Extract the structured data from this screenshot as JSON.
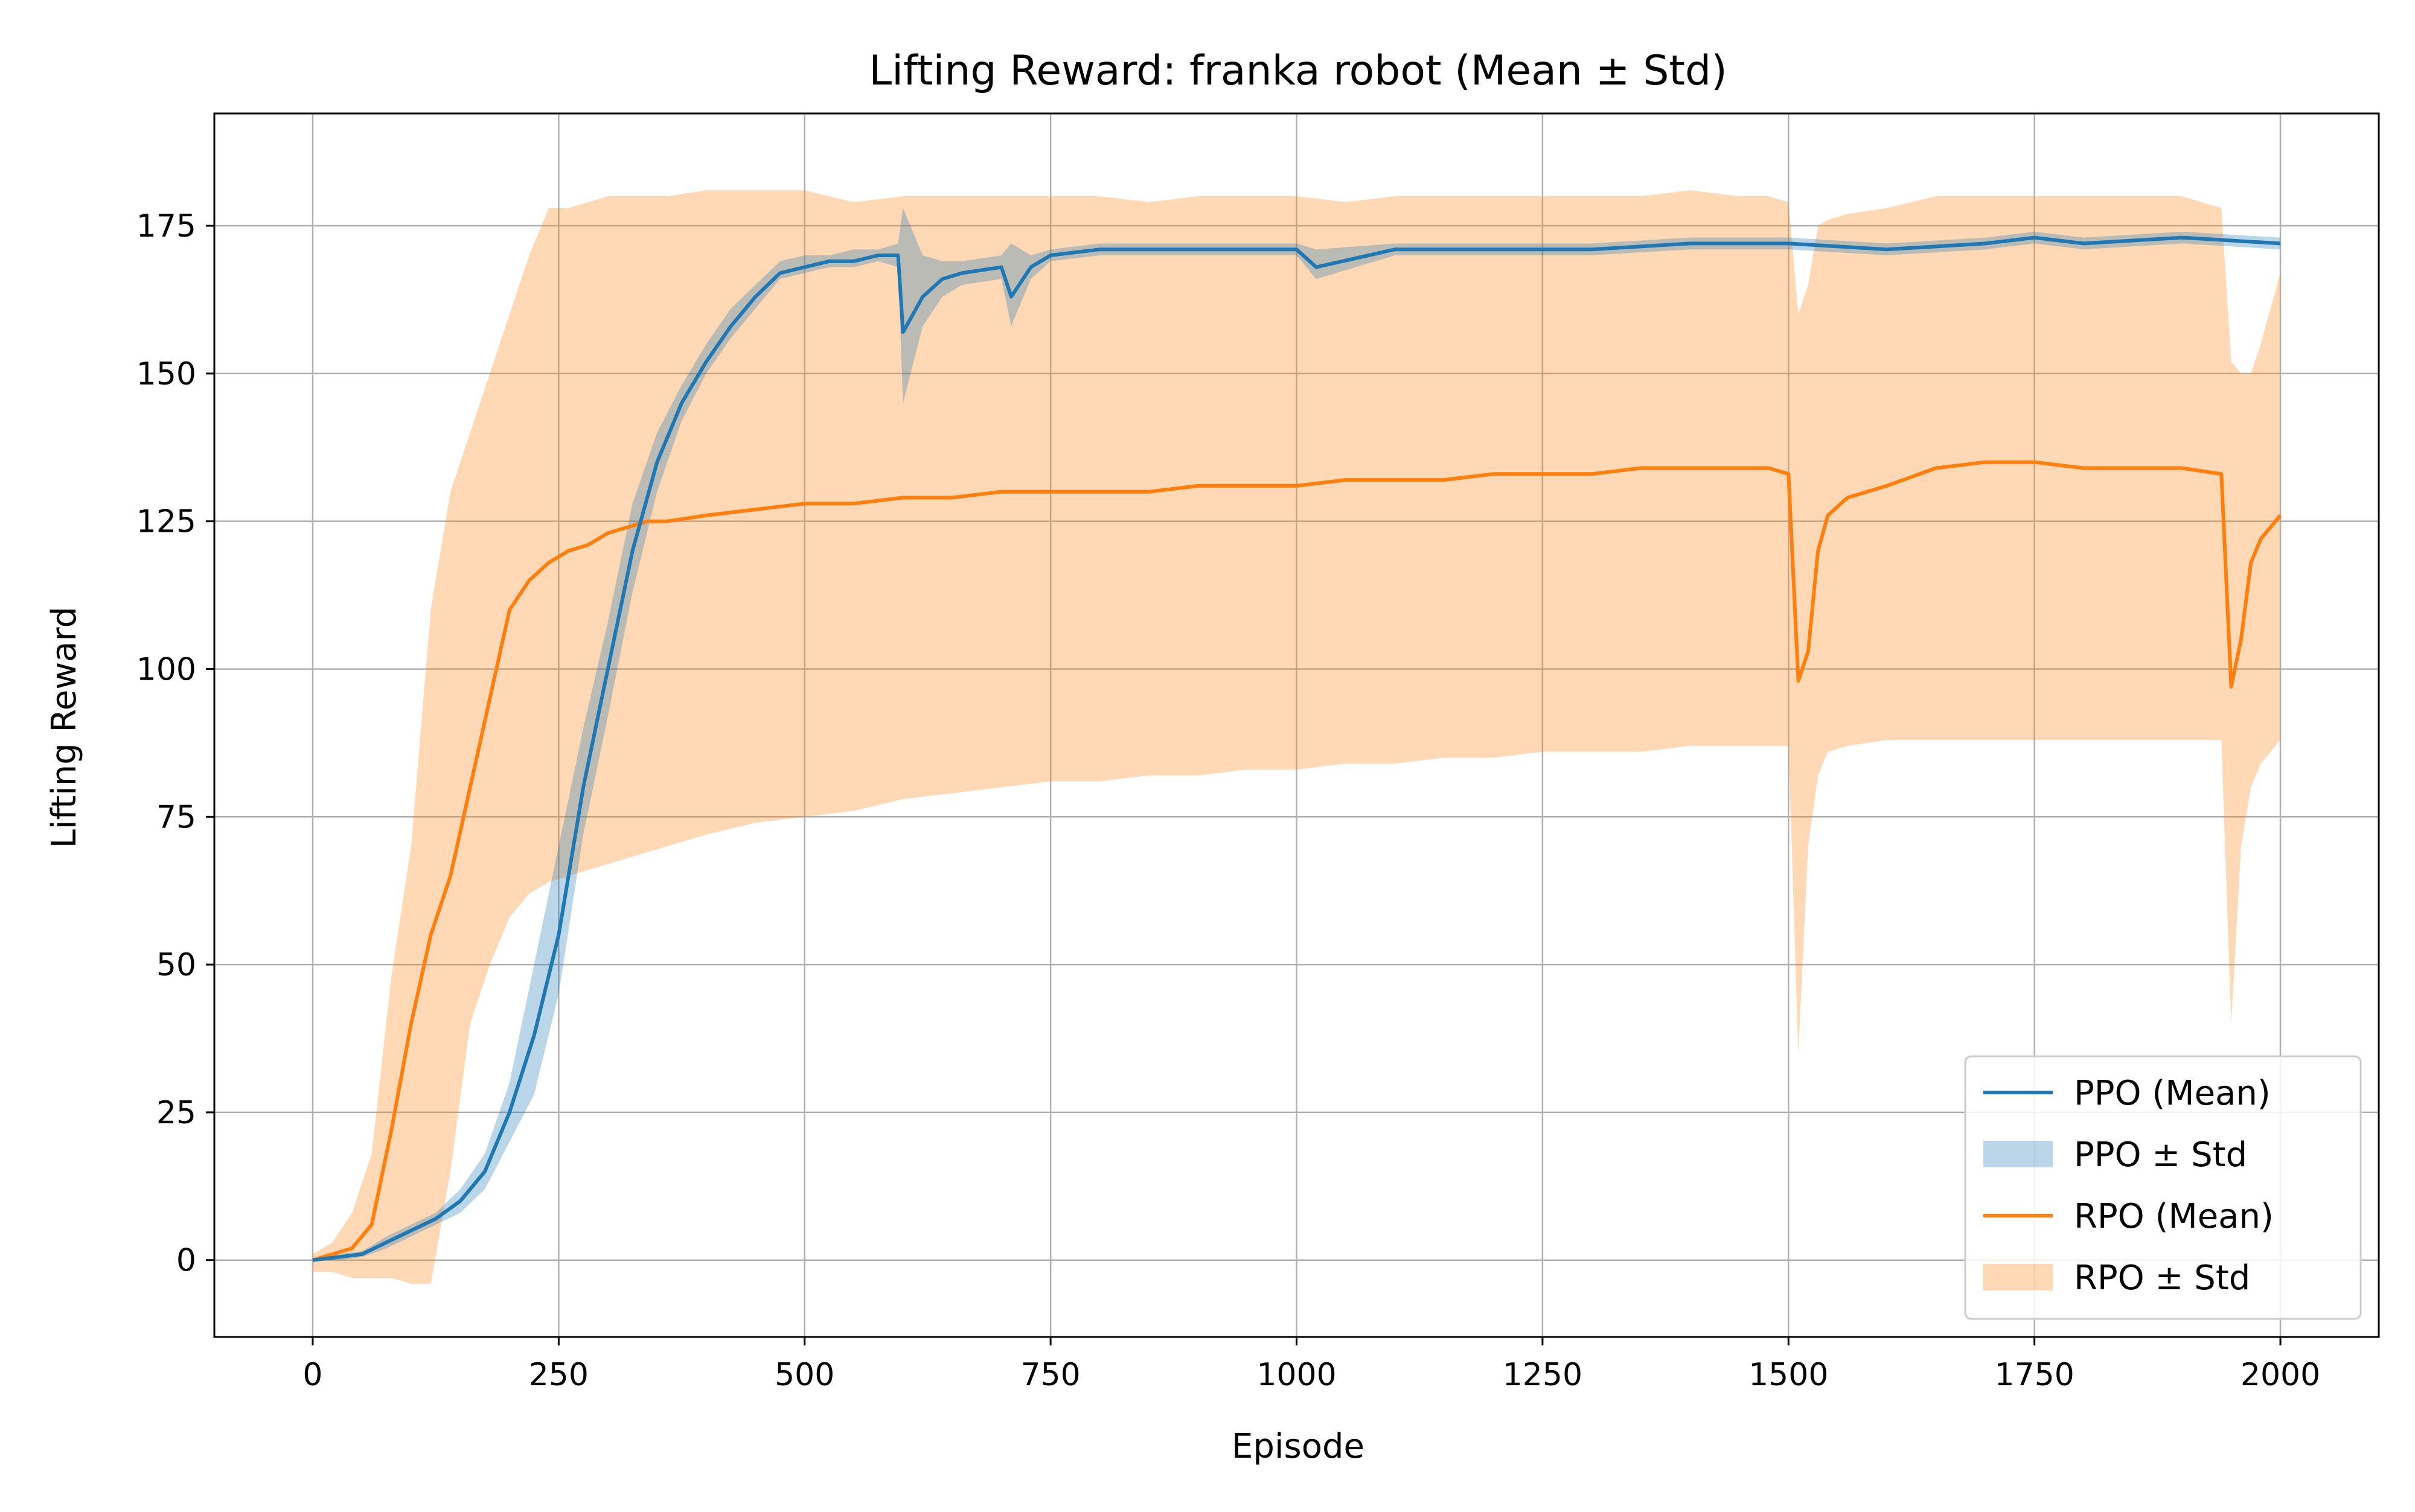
{
  "chart_data": {
    "type": "line",
    "title": "Lifting Reward: franka robot (Mean ± Std)",
    "xlabel": "Episode",
    "ylabel": "Lifting Reward",
    "xlim": [
      -100,
      2100
    ],
    "ylim": [
      -13,
      194
    ],
    "xticks": [
      0,
      250,
      500,
      750,
      1000,
      1250,
      1500,
      1750,
      2000
    ],
    "yticks": [
      0,
      25,
      50,
      75,
      100,
      125,
      150,
      175
    ],
    "grid": true,
    "legend_position": "bottom-right",
    "legend": [
      {
        "label": "PPO (Mean)",
        "kind": "line",
        "color": "#1f77b4"
      },
      {
        "label": "PPO ± Std",
        "kind": "band",
        "color": "#1f77b4"
      },
      {
        "label": "RPO (Mean)",
        "kind": "line",
        "color": "#ff7f0e"
      },
      {
        "label": "RPO ± Std",
        "kind": "band",
        "color": "#ff7f0e"
      }
    ],
    "series": [
      {
        "id": "rpo",
        "color": "#ff7f0e",
        "band_opacity": 0.3,
        "x": [
          0,
          20,
          40,
          60,
          80,
          100,
          120,
          140,
          160,
          180,
          200,
          220,
          240,
          260,
          280,
          300,
          320,
          340,
          360,
          400,
          450,
          500,
          550,
          600,
          650,
          700,
          750,
          800,
          850,
          900,
          950,
          1000,
          1050,
          1100,
          1150,
          1200,
          1250,
          1300,
          1350,
          1400,
          1450,
          1480,
          1500,
          1510,
          1520,
          1530,
          1540,
          1560,
          1600,
          1650,
          1700,
          1750,
          1800,
          1850,
          1900,
          1940,
          1950,
          1960,
          1970,
          1980,
          2000
        ],
        "mean": [
          0,
          1,
          2,
          6,
          22,
          40,
          55,
          65,
          80,
          95,
          110,
          115,
          118,
          120,
          121,
          123,
          124,
          125,
          125,
          126,
          127,
          128,
          128,
          129,
          129,
          130,
          130,
          130,
          130,
          131,
          131,
          131,
          132,
          132,
          132,
          133,
          133,
          133,
          134,
          134,
          134,
          134,
          133,
          98,
          103,
          120,
          126,
          129,
          131,
          134,
          135,
          135,
          134,
          134,
          134,
          133,
          97,
          105,
          118,
          122,
          126
        ],
        "lower": [
          -2,
          -2,
          -3,
          -3,
          -3,
          -4,
          -4,
          15,
          40,
          50,
          58,
          62,
          64,
          65,
          66,
          67,
          68,
          69,
          70,
          72,
          74,
          75,
          76,
          78,
          79,
          80,
          81,
          81,
          82,
          82,
          83,
          83,
          84,
          84,
          85,
          85,
          86,
          86,
          86,
          87,
          87,
          87,
          87,
          35,
          70,
          82,
          86,
          87,
          88,
          88,
          88,
          88,
          88,
          88,
          88,
          88,
          40,
          70,
          80,
          84,
          88
        ],
        "upper": [
          1,
          3,
          8,
          18,
          48,
          70,
          110,
          130,
          140,
          150,
          160,
          170,
          178,
          178,
          179,
          180,
          180,
          180,
          180,
          181,
          181,
          181,
          179,
          180,
          180,
          180,
          180,
          180,
          179,
          180,
          180,
          180,
          179,
          180,
          180,
          180,
          180,
          180,
          180,
          181,
          180,
          180,
          179,
          160,
          165,
          175,
          176,
          177,
          178,
          180,
          180,
          180,
          180,
          180,
          180,
          178,
          152,
          150,
          150,
          155,
          167
        ]
      },
      {
        "id": "ppo",
        "color": "#1f77b4",
        "band_opacity": 0.3,
        "x": [
          0,
          25,
          50,
          75,
          100,
          125,
          150,
          175,
          200,
          225,
          250,
          275,
          300,
          325,
          350,
          375,
          400,
          425,
          450,
          475,
          500,
          525,
          550,
          575,
          595,
          600,
          620,
          640,
          660,
          700,
          710,
          730,
          750,
          800,
          850,
          900,
          1000,
          1020,
          1100,
          1200,
          1300,
          1400,
          1500,
          1600,
          1700,
          1750,
          1800,
          1900,
          2000
        ],
        "mean": [
          0,
          0.5,
          1,
          3,
          5,
          7,
          10,
          15,
          25,
          38,
          55,
          80,
          100,
          120,
          135,
          145,
          152,
          158,
          163,
          167,
          168,
          169,
          169,
          170,
          170,
          157,
          163,
          166,
          167,
          168,
          163,
          168,
          170,
          171,
          171,
          171,
          171,
          168,
          171,
          171,
          171,
          172,
          172,
          171,
          172,
          173,
          172,
          173,
          172
        ],
        "lower": [
          0,
          0,
          0.5,
          2,
          4,
          6,
          8,
          12,
          20,
          28,
          45,
          72,
          92,
          113,
          130,
          142,
          150,
          156,
          161,
          166,
          167,
          168,
          168,
          169,
          168,
          145,
          158,
          163,
          165,
          166,
          158,
          166,
          169,
          170,
          170,
          170,
          170,
          166,
          170,
          170,
          170,
          171,
          171,
          170,
          171,
          172,
          171,
          172,
          171
        ],
        "upper": [
          0,
          1,
          1.5,
          4,
          6,
          8,
          12,
          18,
          30,
          50,
          70,
          90,
          108,
          128,
          140,
          148,
          155,
          161,
          165,
          169,
          170,
          170,
          171,
          171,
          172,
          178,
          170,
          169,
          169,
          170,
          172,
          170,
          171,
          172,
          172,
          172,
          172,
          171,
          172,
          172,
          172,
          173,
          173,
          172,
          173,
          174,
          173,
          174,
          173
        ]
      }
    ]
  }
}
